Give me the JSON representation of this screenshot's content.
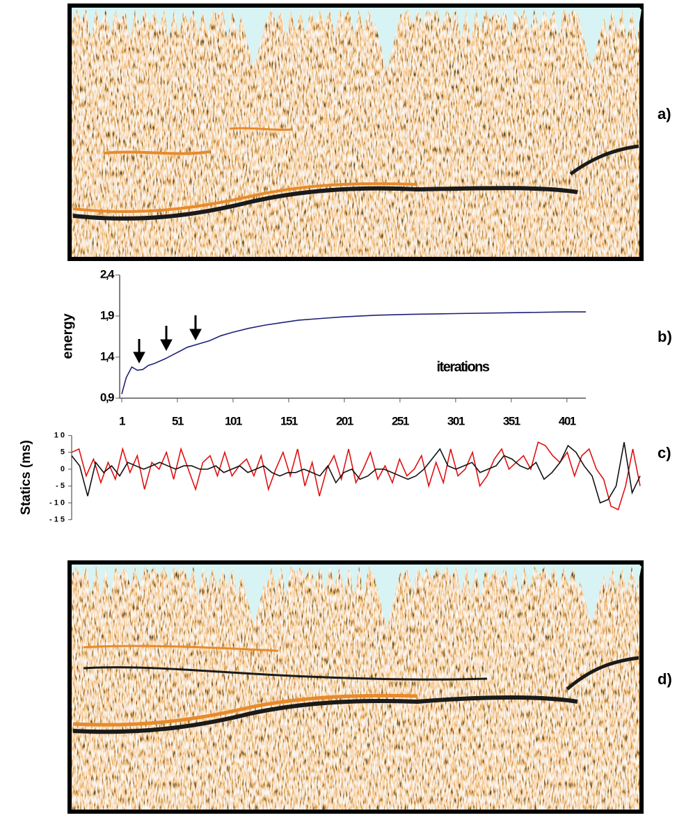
{
  "figure": {
    "panel_labels": [
      "a)",
      "b)",
      "c)",
      "d)"
    ]
  },
  "chart_data": [
    {
      "type": "line",
      "y_label": "energy",
      "annotation": "iterations",
      "color": "#1f1f7a",
      "x": [
        1,
        5,
        10,
        15,
        20,
        25,
        30,
        40,
        50,
        60,
        70,
        80,
        90,
        100,
        115,
        130,
        145,
        160,
        180,
        200,
        230,
        260,
        300,
        350,
        400,
        418
      ],
      "values": [
        0.95,
        1.15,
        1.28,
        1.24,
        1.25,
        1.3,
        1.32,
        1.38,
        1.45,
        1.52,
        1.56,
        1.6,
        1.66,
        1.7,
        1.75,
        1.79,
        1.82,
        1.85,
        1.87,
        1.89,
        1.91,
        1.92,
        1.93,
        1.94,
        1.95,
        1.95
      ],
      "xlim": [
        1,
        418
      ],
      "ylim": [
        0.9,
        2.4
      ],
      "xticks": [
        1,
        51,
        101,
        151,
        201,
        251,
        301,
        351,
        401
      ],
      "yticks": [
        {
          "value": 0.9,
          "label": "0,9"
        },
        {
          "value": 1.4,
          "label": "1,4"
        },
        {
          "value": 1.9,
          "label": "1,9"
        },
        {
          "value": 2.4,
          "label": "2,4"
        }
      ]
    },
    {
      "type": "line",
      "y_label": "Statics (ms)",
      "ylim": [
        -15,
        10
      ],
      "yticks": [
        {
          "value": 10,
          "label": "1 0"
        },
        5,
        0,
        {
          "value": -5,
          "label": "- 5"
        },
        {
          "value": -10,
          "label": "- 1 0"
        },
        {
          "value": -15,
          "label": "- 1 5"
        }
      ],
      "series": [
        {
          "color": "#e01010",
          "values": [
            5,
            6,
            -2,
            3,
            -4,
            2,
            -3,
            6,
            -1,
            4,
            -6,
            2,
            0,
            5,
            -3,
            6,
            0,
            -6,
            2,
            4,
            -2,
            5,
            -2,
            1,
            3,
            -2,
            4,
            -6,
            0,
            5,
            -2,
            6,
            -5,
            2,
            -8,
            0,
            4,
            -3,
            6,
            -4,
            0,
            5,
            -3,
            1,
            -4,
            3,
            -2,
            0,
            4,
            -5,
            2,
            -4,
            6,
            -2,
            0,
            5,
            -5,
            -2,
            3,
            6,
            0,
            2,
            4,
            0,
            8,
            7,
            4,
            2,
            5,
            -2,
            4,
            6,
            0,
            -3,
            -11,
            -12,
            -5,
            6,
            -5
          ]
        },
        {
          "color": "#111111",
          "values": [
            4,
            1,
            -8,
            2,
            -1,
            1,
            -2,
            2,
            1,
            0,
            1,
            2,
            1,
            0,
            1,
            1,
            0,
            0,
            1,
            -1,
            0,
            1,
            -1,
            0,
            1,
            -1,
            -2,
            -1,
            -1,
            0,
            -1,
            -2,
            1,
            -4,
            -1,
            0,
            -3,
            -2,
            0,
            0,
            -1,
            -2,
            -3,
            -2,
            0,
            3,
            6,
            1,
            0,
            1,
            2,
            -1,
            0,
            1,
            4,
            3,
            1,
            0,
            2,
            -3,
            -1,
            2,
            7,
            5,
            1,
            -2,
            -10,
            -9,
            -5,
            8,
            -7,
            -2
          ]
        }
      ]
    }
  ]
}
